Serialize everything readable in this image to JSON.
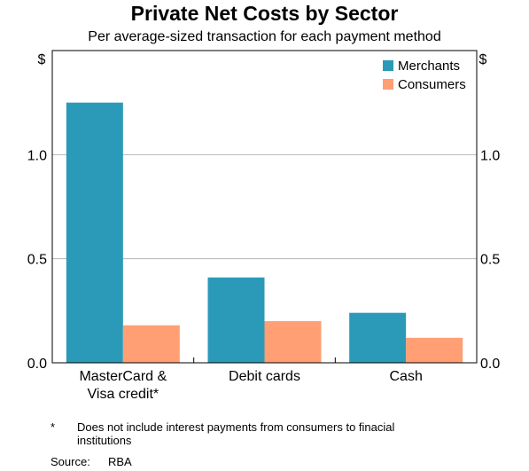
{
  "chart_data": {
    "type": "bar",
    "title": "Private Net Costs by Sector",
    "subtitle": "Per average-sized transaction for each payment method",
    "y_unit_left": "$",
    "y_unit_right": "$",
    "ylim": [
      0,
      1.5
    ],
    "yticks": [
      0.0,
      0.5,
      1.0
    ],
    "ytick_labels": [
      "0.0",
      "0.5",
      "1.0"
    ],
    "grid": true,
    "legend_position": "top-right",
    "categories": [
      [
        "MasterCard &",
        "Visa credit*"
      ],
      [
        "Debit cards"
      ],
      [
        "Cash"
      ]
    ],
    "series": [
      {
        "name": "Merchants",
        "color": "#2b9ab8",
        "values": [
          1.25,
          0.41,
          0.24
        ]
      },
      {
        "name": "Consumers",
        "color": "#ff9f73",
        "values": [
          0.18,
          0.2,
          0.12
        ]
      }
    ]
  },
  "footnote": {
    "marker": "*",
    "text_line1": "Does not include interest payments from consumers to finacial",
    "text_line2": "institutions"
  },
  "source": {
    "label": "Source:",
    "value": "RBA"
  }
}
